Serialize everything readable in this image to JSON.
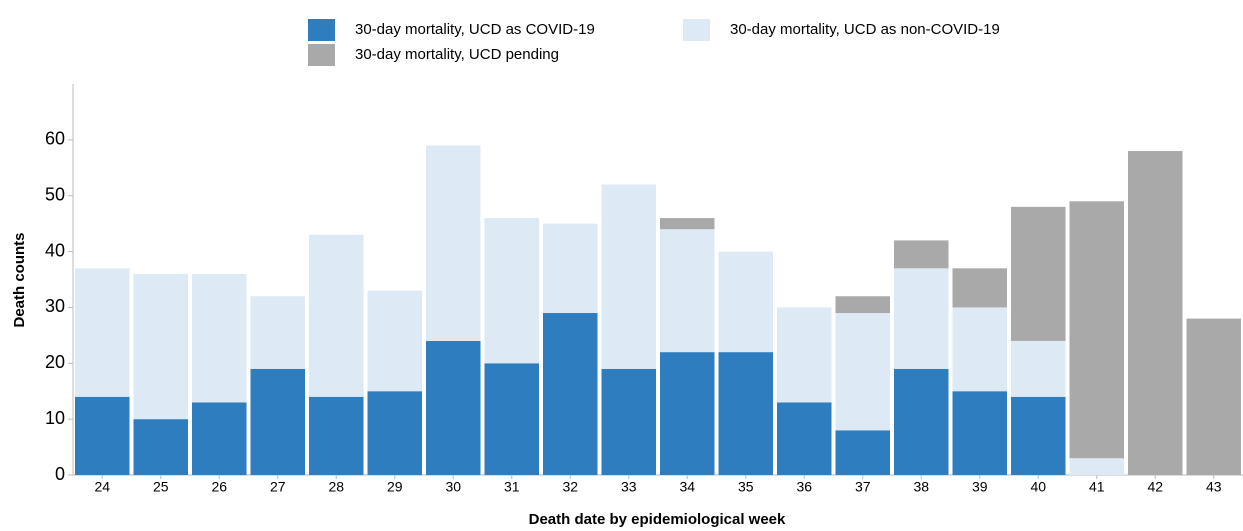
{
  "chart_data": {
    "type": "stacked_bar",
    "x_label": "Death date by epidemiological week",
    "y_label": "Death counts",
    "categories": [
      "24",
      "25",
      "26",
      "27",
      "28",
      "29",
      "30",
      "31",
      "32",
      "33",
      "34",
      "35",
      "36",
      "37",
      "38",
      "39",
      "40",
      "41",
      "42",
      "43"
    ],
    "series": [
      {
        "name": "30-day mortality, UCD as COVID-19",
        "color": "#2e7ebf",
        "values": [
          14,
          10,
          13,
          19,
          14,
          15,
          24,
          20,
          29,
          19,
          22,
          22,
          13,
          8,
          19,
          15,
          14,
          0,
          0,
          0
        ]
      },
      {
        "name": "30-day mortality, UCD as non-COVID-19",
        "color": "#dde9f5",
        "values": [
          23,
          26,
          23,
          13,
          29,
          18,
          35,
          26,
          16,
          33,
          22,
          18,
          17,
          21,
          18,
          15,
          10,
          3,
          0,
          0
        ]
      },
      {
        "name": "30-day mortality, UCD pending",
        "color": "#a9a9a9",
        "values": [
          0,
          0,
          0,
          0,
          0,
          0,
          0,
          0,
          0,
          0,
          2,
          0,
          0,
          3,
          5,
          7,
          24,
          46,
          58,
          28
        ]
      }
    ],
    "ylim": [
      0,
      70
    ],
    "yticks": [
      0,
      10,
      20,
      30,
      40,
      50,
      60
    ],
    "grid": false
  }
}
